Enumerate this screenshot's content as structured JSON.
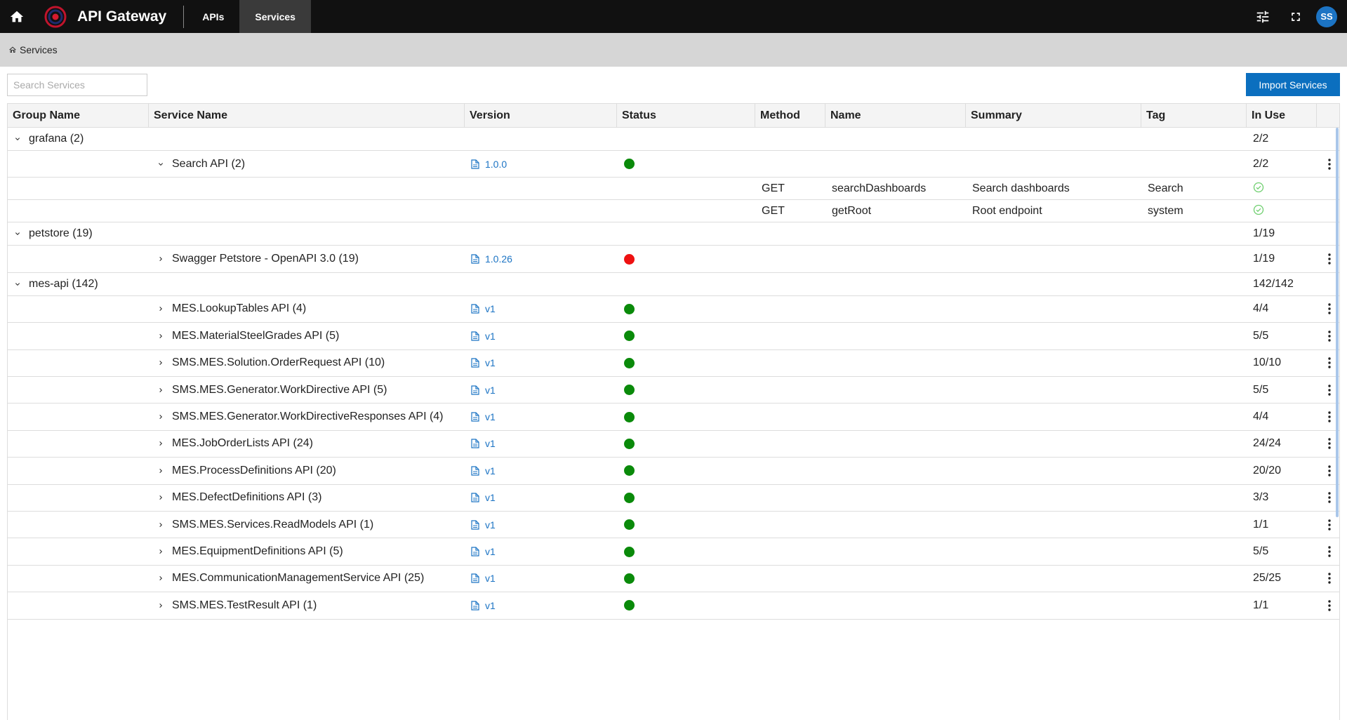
{
  "header": {
    "title": "API Gateway",
    "tabs": [
      {
        "label": "APIs",
        "active": false
      },
      {
        "label": "Services",
        "active": true
      }
    ],
    "user_initials": "SS",
    "accent_color": "#1c74c4"
  },
  "breadcrumb": {
    "label": "Services"
  },
  "toolbar": {
    "search_placeholder": "Search Services",
    "import_label": "Import Services"
  },
  "columns": {
    "group": "Group Name",
    "service": "Service Name",
    "version": "Version",
    "status": "Status",
    "method": "Method",
    "name": "Name",
    "summary": "Summary",
    "tag": "Tag",
    "inuse": "In Use"
  },
  "rows": [
    {
      "type": "group",
      "label": "grafana (2)",
      "inuse": "2/2"
    },
    {
      "type": "service",
      "label": "Search API (2)",
      "expanded": true,
      "version": "1.0.0",
      "status": "ok",
      "inuse": "2/2"
    },
    {
      "type": "endpoint",
      "method": "GET",
      "name": "searchDashboards",
      "summary": "Search dashboards",
      "tag": "Search",
      "inuse_icon": "check-circle-icon"
    },
    {
      "type": "endpoint",
      "method": "GET",
      "name": "getRoot",
      "summary": "Root endpoint",
      "tag": "system",
      "inuse_icon": "check-circle-icon"
    },
    {
      "type": "group",
      "label": "petstore (19)",
      "inuse": "1/19"
    },
    {
      "type": "service",
      "label": "Swagger Petstore - OpenAPI 3.0 (19)",
      "expanded": false,
      "version": "1.0.26",
      "status": "error",
      "inuse": "1/19"
    },
    {
      "type": "group",
      "label": "mes-api (142)",
      "inuse": "142/142"
    },
    {
      "type": "service",
      "label": "MES.LookupTables API (4)",
      "expanded": false,
      "version": "v1",
      "status": "ok",
      "inuse": "4/4"
    },
    {
      "type": "service",
      "label": "MES.MaterialSteelGrades API (5)",
      "expanded": false,
      "version": "v1",
      "status": "ok",
      "inuse": "5/5"
    },
    {
      "type": "service",
      "label": "SMS.MES.Solution.OrderRequest API (10)",
      "expanded": false,
      "version": "v1",
      "status": "ok",
      "inuse": "10/10"
    },
    {
      "type": "service",
      "label": "SMS.MES.Generator.WorkDirective API (5)",
      "expanded": false,
      "version": "v1",
      "status": "ok",
      "inuse": "5/5"
    },
    {
      "type": "service",
      "label": "SMS.MES.Generator.WorkDirectiveResponses API (4)",
      "expanded": false,
      "version": "v1",
      "status": "ok",
      "inuse": "4/4"
    },
    {
      "type": "service",
      "label": "MES.JobOrderLists API (24)",
      "expanded": false,
      "version": "v1",
      "status": "ok",
      "inuse": "24/24"
    },
    {
      "type": "service",
      "label": "MES.ProcessDefinitions API (20)",
      "expanded": false,
      "version": "v1",
      "status": "ok",
      "inuse": "20/20"
    },
    {
      "type": "service",
      "label": "MES.DefectDefinitions API (3)",
      "expanded": false,
      "version": "v1",
      "status": "ok",
      "inuse": "3/3"
    },
    {
      "type": "service",
      "label": "SMS.MES.Services.ReadModels API (1)",
      "expanded": false,
      "version": "v1",
      "status": "ok",
      "inuse": "1/1"
    },
    {
      "type": "service",
      "label": "MES.EquipmentDefinitions API (5)",
      "expanded": false,
      "version": "v1",
      "status": "ok",
      "inuse": "5/5"
    },
    {
      "type": "service",
      "label": "MES.CommunicationManagementService API (25)",
      "expanded": false,
      "version": "v1",
      "status": "ok",
      "inuse": "25/25"
    },
    {
      "type": "service",
      "label": "SMS.MES.TestResult API (1)",
      "expanded": false,
      "version": "v1",
      "status": "ok",
      "inuse": "1/1"
    }
  ],
  "status_colors": {
    "ok": "#0a8a0a",
    "error": "#ee1111",
    "check": "#6fcf6f"
  }
}
